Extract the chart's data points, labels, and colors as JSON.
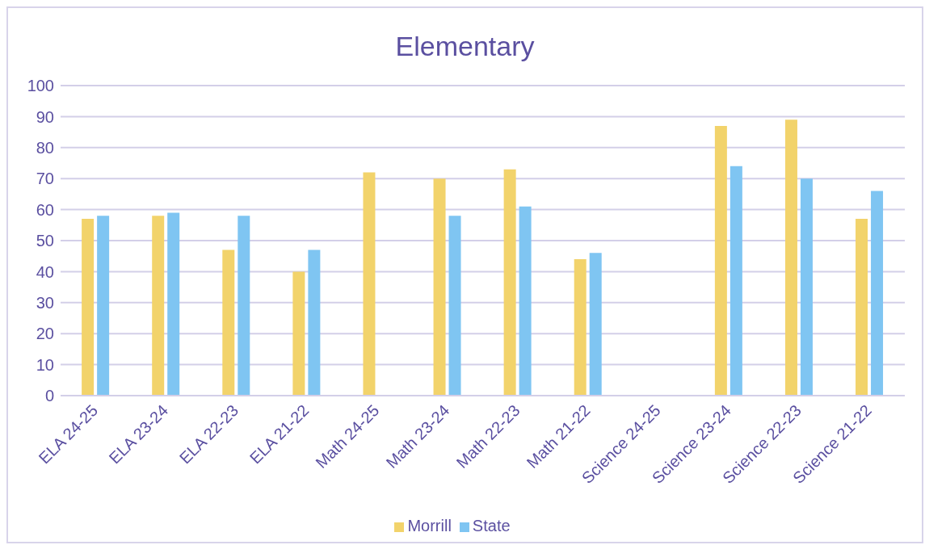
{
  "chart_data": {
    "type": "bar",
    "title": "Elementary",
    "categories": [
      "ELA 24-25",
      "ELA 23-24",
      "ELA 22-23",
      "ELA 21-22",
      "Math 24-25",
      "Math 23-24",
      "Math 22-23",
      "Math 21-22",
      "Science 24-25",
      "Science 23-24",
      "Science 22-23",
      "Science 21-22"
    ],
    "series": [
      {
        "name": "Morrill",
        "color": "#f2d36b",
        "values": [
          57,
          58,
          47,
          40,
          72,
          70,
          73,
          44,
          null,
          87,
          89,
          57
        ]
      },
      {
        "name": "State",
        "color": "#7fc5f2",
        "values": [
          58,
          59,
          58,
          47,
          null,
          58,
          61,
          46,
          null,
          74,
          70,
          66
        ]
      }
    ],
    "ylim": [
      0,
      100
    ],
    "yticks": [
      0,
      10,
      20,
      30,
      40,
      50,
      60,
      70,
      80,
      90,
      100
    ],
    "grid": "y",
    "legend": "bottom"
  }
}
